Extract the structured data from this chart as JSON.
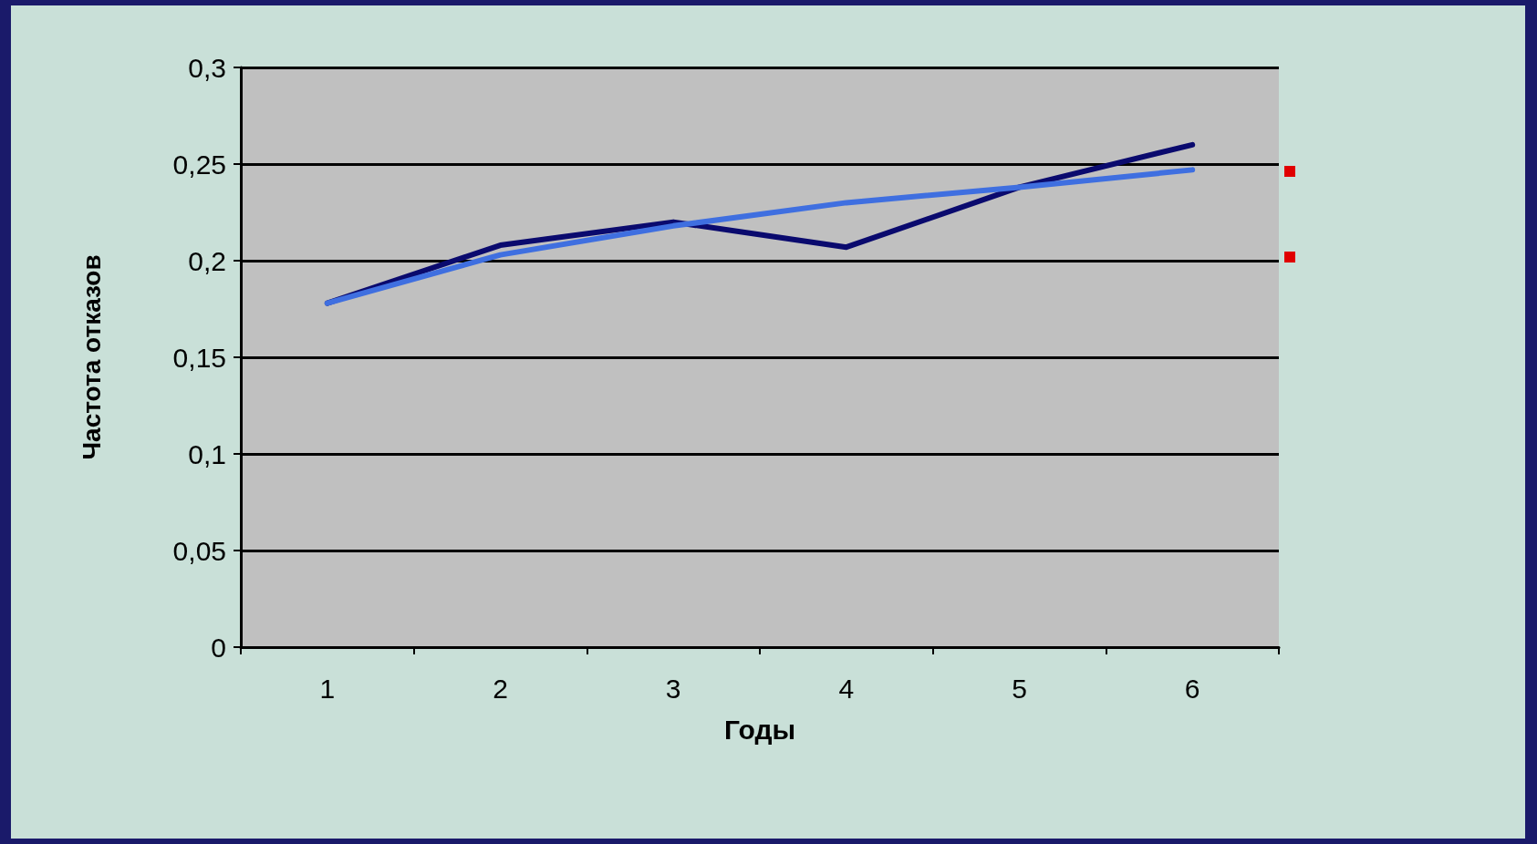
{
  "chart_data": {
    "type": "line",
    "xlabel": "Годы",
    "ylabel": "Частота отказов",
    "categories": [
      "1",
      "2",
      "3",
      "4",
      "5",
      "6"
    ],
    "series": [
      {
        "color": "#0a0a6e",
        "values": [
          0.178,
          0.208,
          0.22,
          0.207,
          0.238,
          0.26
        ]
      },
      {
        "color": "#3f6fe0",
        "values": [
          0.178,
          0.203,
          0.218,
          0.23,
          0.238,
          0.247
        ]
      }
    ],
    "ylim": [
      0,
      0.3
    ],
    "yticks": [
      0,
      {
        "value": 0.05,
        "label": "0,05"
      },
      {
        "value": 0.1,
        "label": "0,1"
      },
      {
        "value": 0.15,
        "label": "0,15"
      },
      {
        "value": 0.2,
        "label": "0,2"
      },
      {
        "value": 0.25,
        "label": "0,25"
      },
      {
        "value": 0.3,
        "label": "0,3"
      }
    ],
    "grid": "y",
    "marker": "none",
    "line_style": "solid"
  }
}
